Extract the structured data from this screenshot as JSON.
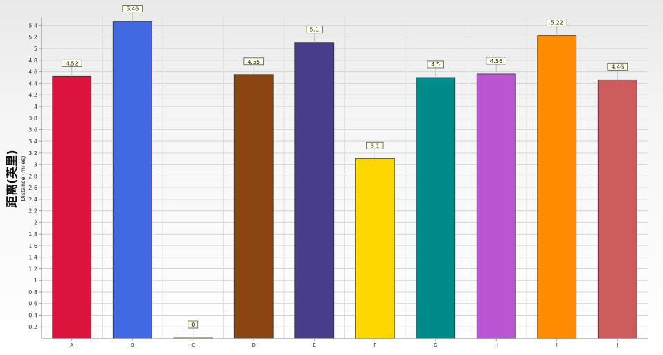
{
  "chart_data": {
    "type": "bar",
    "categories": [
      "A",
      "B",
      "C",
      "D",
      "E",
      "F",
      "G",
      "H",
      "I",
      "J"
    ],
    "values": [
      4.52,
      5.46,
      0,
      4.55,
      5.1,
      3.1,
      4.5,
      4.56,
      5.22,
      4.46
    ],
    "value_labels": [
      "4.52",
      "5.46",
      "0",
      "4.55",
      "5.1",
      "3.1",
      "4.5",
      "4.56",
      "5.22",
      "4.46"
    ],
    "colors": [
      "#dc143c",
      "#4169e1",
      "#9acd32",
      "#8b4513",
      "#483d8b",
      "#ffd700",
      "#008b8b",
      "#ba55d3",
      "#ff8c00",
      "#cd5c5c"
    ],
    "title": "",
    "xlabel": "",
    "ylabel": "距离(英里)",
    "ylabel_sub": "Distance (miles)",
    "ylim": [
      0,
      5.55
    ],
    "yticks": [
      0.2,
      0.4,
      0.6,
      0.8,
      1,
      1.2,
      1.4,
      1.6,
      1.8,
      2,
      2.2,
      2.4,
      2.6,
      2.8,
      3,
      3.2,
      3.4,
      3.6,
      3.8,
      4,
      4.2,
      4.4,
      4.6,
      4.8,
      5,
      5.2,
      5.4
    ],
    "grid": true,
    "legend": "none"
  }
}
